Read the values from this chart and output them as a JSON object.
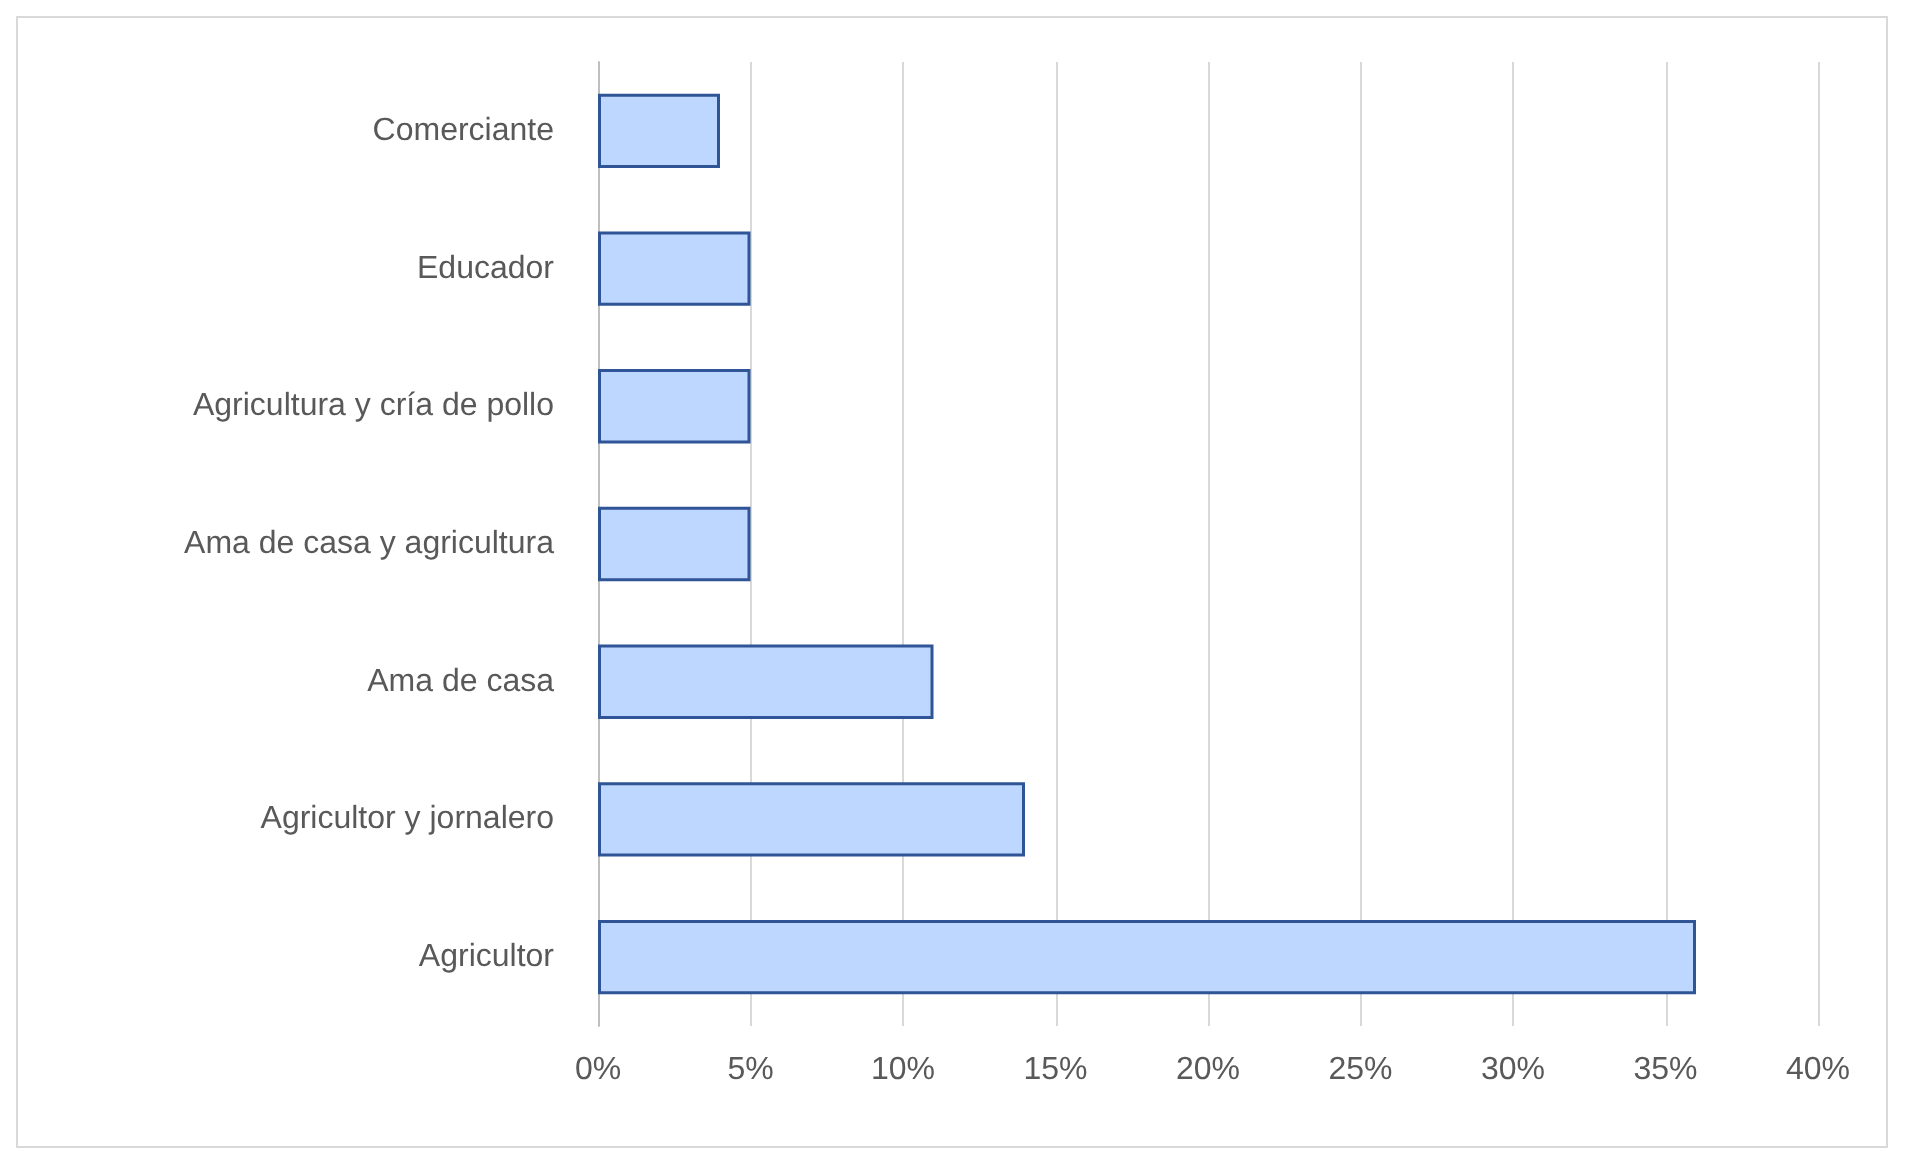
{
  "chart_data": {
    "type": "bar",
    "orientation": "horizontal",
    "categories": [
      "Comerciante",
      "Educador",
      "Agricultura y cría de pollo",
      "Ama de casa y agricultura",
      "Ama de casa",
      "Agricultor y jornalero",
      "Agricultor"
    ],
    "values": [
      4,
      5,
      5,
      5,
      11,
      14,
      36
    ],
    "color": "#bdd7fe",
    "xlim": [
      0,
      40
    ],
    "xticks": [
      {
        "value": 0,
        "label": "0%"
      },
      {
        "value": 5,
        "label": "5%"
      },
      {
        "value": 10,
        "label": "10%"
      },
      {
        "value": 15,
        "label": "15%"
      },
      {
        "value": 20,
        "label": "20%"
      },
      {
        "value": 25,
        "label": "25%"
      },
      {
        "value": 30,
        "label": "30%"
      },
      {
        "value": 35,
        "label": "35%"
      },
      {
        "value": 40,
        "label": "40%"
      }
    ],
    "grid": "x"
  }
}
